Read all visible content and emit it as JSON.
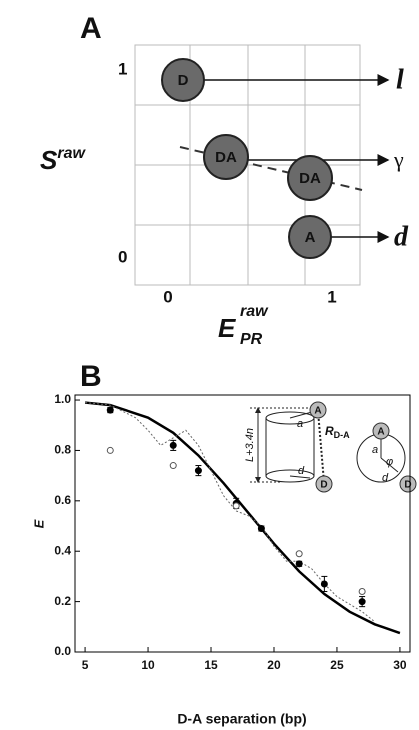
{
  "panel_a": {
    "label": "A",
    "y_ticks": [
      "0",
      "1"
    ],
    "x_ticks": [
      "0",
      "1"
    ],
    "y_label": {
      "main": "S",
      "sup": "raw"
    },
    "x_label": {
      "main": "E",
      "sup": "raw",
      "sub": "PR"
    },
    "circles": [
      "D",
      "DA",
      "DA",
      "A"
    ],
    "arrow_labels": [
      "l",
      "γ",
      "d"
    ]
  },
  "chart_data": {
    "type": "line",
    "panel_label": "B",
    "x_label": "D-A separation (bp)",
    "y_label": "E",
    "xlim": [
      4.2,
      30.8
    ],
    "ylim": [
      0,
      1.02
    ],
    "xticks": [
      5,
      10,
      15,
      20,
      25,
      30
    ],
    "yticks": [
      {
        "value": 0,
        "label": "0.0"
      },
      {
        "value": 0.2,
        "label": "0.2"
      },
      {
        "value": 0.4,
        "label": "0.4"
      },
      {
        "value": 0.6,
        "label": "0.6"
      },
      {
        "value": 0.8,
        "label": "0.8"
      },
      {
        "value": 1,
        "label": "1.0"
      }
    ],
    "inset": {
      "length": "L+3.4n",
      "a": "a",
      "d": "d",
      "acceptor": "A",
      "donor": "D",
      "angle": "φ",
      "distance": {
        "main": "R",
        "sub": "D-A"
      }
    },
    "series": [
      {
        "kind": "solid",
        "color": "#000000",
        "x": [
          5,
          7,
          10,
          12,
          14,
          16,
          17,
          18,
          19,
          20,
          22,
          24,
          26,
          28,
          30
        ],
        "values": [
          0.99,
          0.98,
          0.93,
          0.87,
          0.78,
          0.67,
          0.61,
          0.55,
          0.49,
          0.43,
          0.32,
          0.23,
          0.16,
          0.11,
          0.075
        ]
      },
      {
        "kind": "dotted",
        "color": "#666666",
        "x": [
          5,
          7,
          9,
          10,
          11,
          12,
          13,
          14,
          15,
          16,
          17,
          18,
          19,
          20,
          21,
          22,
          23,
          24,
          25,
          26,
          27,
          28
        ],
        "values": [
          0.99,
          0.98,
          0.93,
          0.88,
          0.82,
          0.85,
          0.88,
          0.82,
          0.72,
          0.62,
          0.56,
          0.54,
          0.5,
          0.42,
          0.36,
          0.36,
          0.33,
          0.27,
          0.22,
          0.19,
          0.16,
          0.12
        ]
      },
      {
        "kind": "filled",
        "color": "#000000",
        "x": [
          7,
          12,
          14,
          17,
          19,
          22,
          24,
          27
        ],
        "values": [
          0.96,
          0.82,
          0.72,
          0.59,
          0.49,
          0.35,
          0.27,
          0.2
        ],
        "errors": [
          0.01,
          0.02,
          0.02,
          0.02,
          0.01,
          0.01,
          0.03,
          0.02
        ]
      },
      {
        "kind": "open",
        "color": "#555555",
        "x": [
          7,
          12,
          17,
          22,
          27
        ],
        "values": [
          0.8,
          0.74,
          0.58,
          0.39,
          0.24
        ]
      }
    ]
  }
}
